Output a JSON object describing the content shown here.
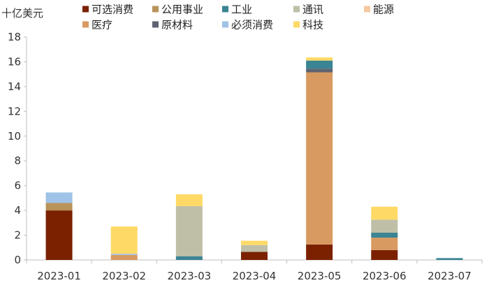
{
  "chart_data": {
    "type": "bar",
    "stacked": true,
    "title": "",
    "unit_label": "十亿美元",
    "xlabel": "",
    "ylabel": "十亿美元",
    "ylim": [
      0,
      18
    ],
    "yticks": [
      0,
      2,
      4,
      6,
      8,
      10,
      12,
      14,
      16,
      18
    ],
    "grid": false,
    "legend_position": "top",
    "categories": [
      "2023-01",
      "2023-02",
      "2023-03",
      "2023-04",
      "2023-05",
      "2023-06",
      "2023-07"
    ],
    "series": [
      {
        "name": "可选消费",
        "color": "#7b2100",
        "values": [
          4.0,
          0,
          0,
          0.65,
          1.25,
          0.8,
          0
        ]
      },
      {
        "name": "医疗",
        "color": "#d99a61",
        "values": [
          0,
          0.4,
          0,
          0,
          13.9,
          1.0,
          0
        ]
      },
      {
        "name": "公用事业",
        "color": "#b8935a",
        "values": [
          0.6,
          0,
          0,
          0,
          0,
          0,
          0
        ]
      },
      {
        "name": "原材料",
        "color": "#5e6472",
        "values": [
          0,
          0,
          0,
          0,
          0.3,
          0,
          0
        ]
      },
      {
        "name": "工业",
        "color": "#3a8493",
        "values": [
          0,
          0,
          0.3,
          0,
          0.65,
          0.4,
          0.15
        ]
      },
      {
        "name": "必须消费",
        "color": "#9fc3e6",
        "values": [
          0.85,
          0.1,
          0,
          0,
          0,
          0,
          0
        ]
      },
      {
        "name": "通讯",
        "color": "#bfbfa8",
        "values": [
          0,
          0,
          4.05,
          0.55,
          0,
          1.05,
          0
        ]
      },
      {
        "name": "科技",
        "color": "#ffd966",
        "values": [
          0,
          2.2,
          0.95,
          0.35,
          0.25,
          1.05,
          0
        ]
      },
      {
        "name": "能源",
        "color": "#f7c8a0",
        "values": [
          0,
          0,
          0,
          0,
          0,
          0,
          0
        ]
      }
    ],
    "legend_order": [
      "可选消费",
      "公用事业",
      "工业",
      "通讯",
      "能源",
      "医疗",
      "原材料",
      "必须消费",
      "科技"
    ],
    "stack_order": [
      "可选消费",
      "医疗",
      "公用事业",
      "原材料",
      "工业",
      "必须消费",
      "通讯",
      "科技"
    ]
  }
}
